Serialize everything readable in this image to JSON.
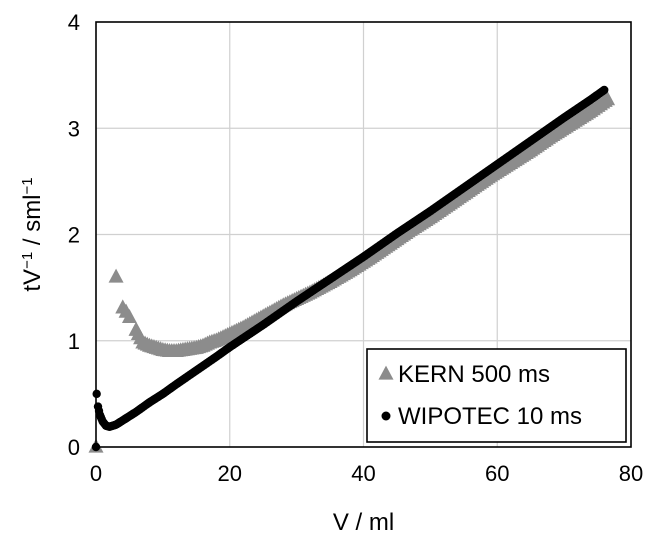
{
  "chart_data": {
    "type": "scatter",
    "xlabel": "V / ml",
    "ylabel_parts": [
      "tV",
      "−1",
      " / sml",
      "−1"
    ],
    "xlim": [
      0,
      80
    ],
    "ylim": [
      0,
      4
    ],
    "x_ticks": [
      "0",
      "20",
      "40",
      "60",
      "80"
    ],
    "y_ticks": [
      "0",
      "1",
      "2",
      "3",
      "4"
    ],
    "grid": true,
    "legend_position": "bottom-right",
    "series": [
      {
        "name": "KERN 500 ms",
        "marker": "triangle",
        "color": "#8c8c8c",
        "points": [
          [
            0.0,
            0.0
          ],
          [
            3.0,
            1.6
          ],
          [
            4.0,
            1.31
          ],
          [
            4.5,
            1.27
          ],
          [
            5.0,
            1.22
          ],
          [
            6.0,
            1.1
          ],
          [
            7.0,
            0.98
          ],
          [
            8.0,
            0.95
          ],
          [
            9.0,
            0.93
          ],
          [
            10.0,
            0.91
          ],
          [
            11.0,
            0.9
          ],
          [
            12.0,
            0.9
          ],
          [
            13.0,
            0.91
          ],
          [
            14.0,
            0.92
          ],
          [
            15.0,
            0.93
          ],
          [
            16.0,
            0.95
          ],
          [
            17.0,
            0.98
          ],
          [
            18.0,
            1.0
          ],
          [
            19.0,
            1.03
          ],
          [
            20.0,
            1.06
          ],
          [
            21.0,
            1.09
          ],
          [
            22.0,
            1.12
          ],
          [
            24.0,
            1.19
          ],
          [
            26.0,
            1.26
          ],
          [
            28.0,
            1.33
          ],
          [
            30.0,
            1.39
          ],
          [
            32.0,
            1.45
          ],
          [
            35.0,
            1.55
          ],
          [
            38.0,
            1.66
          ],
          [
            41.0,
            1.78
          ],
          [
            44.0,
            1.91
          ],
          [
            47.0,
            2.04
          ],
          [
            50.0,
            2.16
          ],
          [
            53.0,
            2.29
          ],
          [
            56.0,
            2.42
          ],
          [
            59.0,
            2.55
          ],
          [
            62.0,
            2.67
          ],
          [
            65.0,
            2.79
          ],
          [
            68.0,
            2.92
          ],
          [
            71.0,
            3.04
          ],
          [
            74.0,
            3.16
          ],
          [
            76.5,
            3.27
          ]
        ]
      },
      {
        "name": "WIPOTEC 10 ms",
        "marker": "circle",
        "color": "#000000",
        "points": [
          [
            0.0,
            0.0
          ],
          [
            0.1,
            0.5
          ],
          [
            0.3,
            0.38
          ],
          [
            0.6,
            0.3
          ],
          [
            1.0,
            0.24
          ],
          [
            1.5,
            0.2
          ],
          [
            2.0,
            0.19
          ],
          [
            3.0,
            0.21
          ],
          [
            4.0,
            0.25
          ],
          [
            5.0,
            0.29
          ],
          [
            6.0,
            0.33
          ],
          [
            8.0,
            0.42
          ],
          [
            10.0,
            0.5
          ],
          [
            12.0,
            0.59
          ],
          [
            15.0,
            0.72
          ],
          [
            18.0,
            0.85
          ],
          [
            20.0,
            0.94
          ],
          [
            25.0,
            1.15
          ],
          [
            30.0,
            1.37
          ],
          [
            35.0,
            1.58
          ],
          [
            40.0,
            1.79
          ],
          [
            45.0,
            2.01
          ],
          [
            50.0,
            2.22
          ],
          [
            55.0,
            2.44
          ],
          [
            60.0,
            2.66
          ],
          [
            65.0,
            2.88
          ],
          [
            70.0,
            3.1
          ],
          [
            74.0,
            3.27
          ],
          [
            76.0,
            3.36
          ]
        ]
      }
    ]
  }
}
